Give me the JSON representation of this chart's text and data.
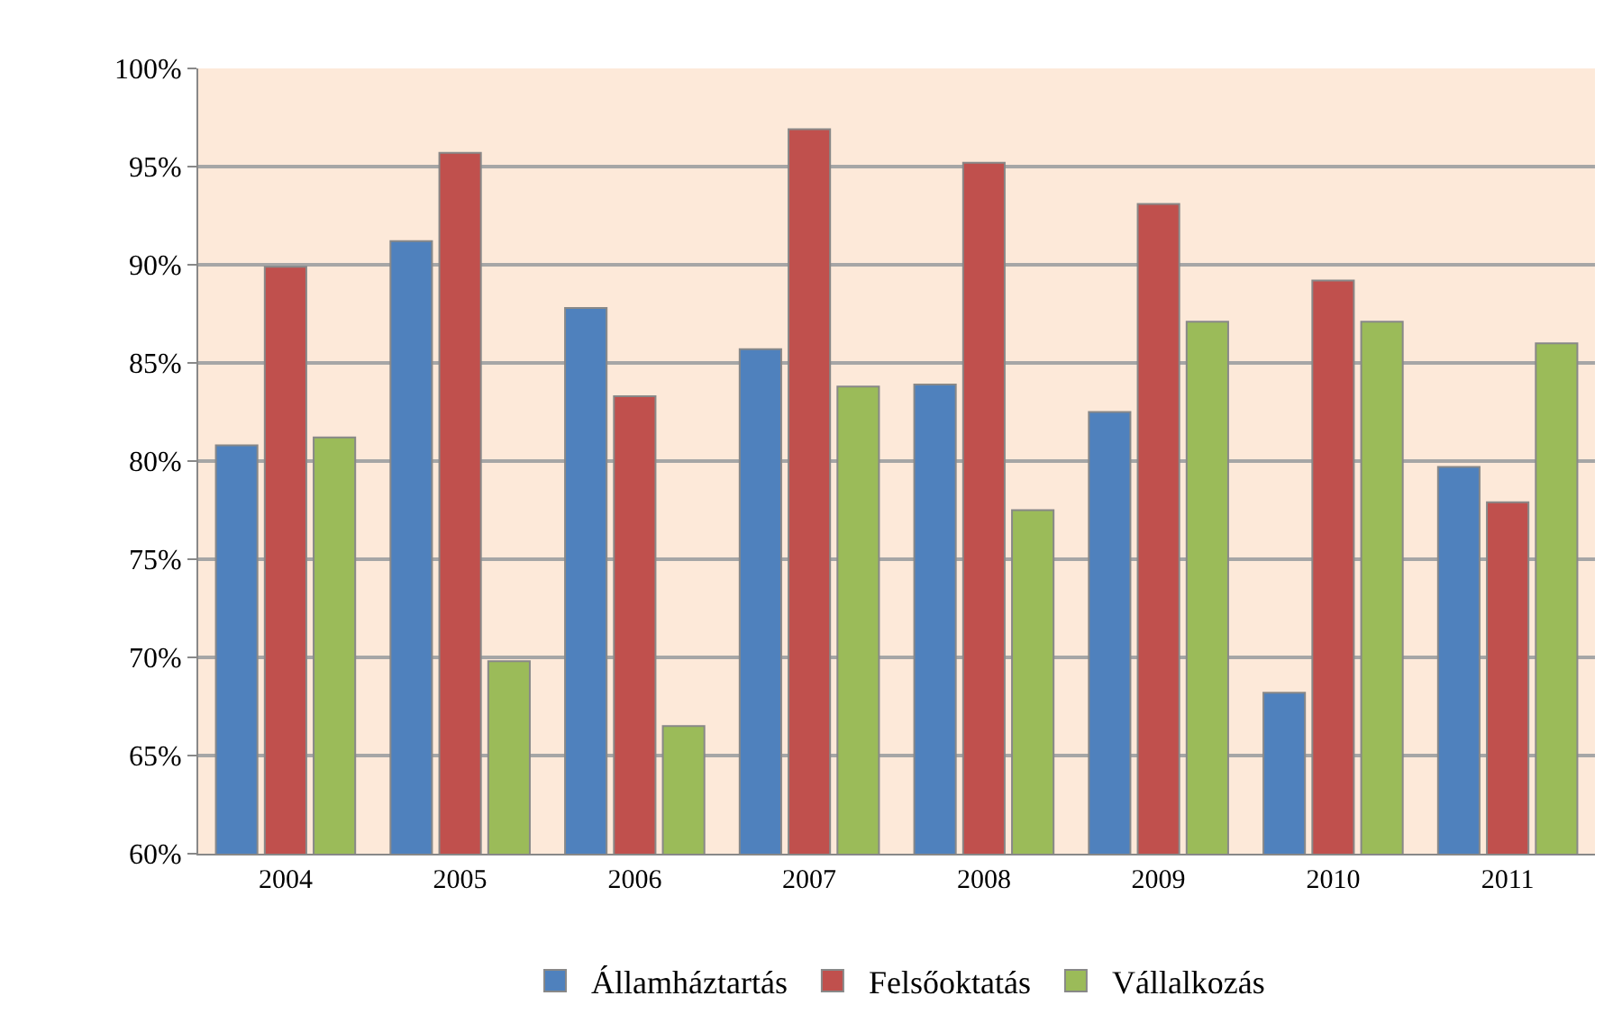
{
  "chart_data": {
    "type": "bar",
    "categories": [
      "2004",
      "2005",
      "2006",
      "2007",
      "2008",
      "2009",
      "2010",
      "2011"
    ],
    "series": [
      {
        "name": "Államháztartás",
        "color": "#4f81bd",
        "values": [
          80.8,
          91.2,
          87.8,
          85.7,
          83.9,
          82.5,
          68.2,
          79.7
        ]
      },
      {
        "name": "Felsőoktatás",
        "color": "#c0504d",
        "values": [
          89.9,
          95.7,
          83.3,
          96.9,
          95.2,
          93.1,
          89.2,
          77.9
        ]
      },
      {
        "name": "Vállalkozás",
        "color": "#9bbb59",
        "values": [
          81.2,
          69.8,
          66.5,
          83.8,
          77.5,
          87.1,
          87.1,
          86.0
        ]
      }
    ],
    "ylim": [
      60,
      100
    ],
    "yticks": [
      {
        "value": 60,
        "label": "60%"
      },
      {
        "value": 65,
        "label": "65%"
      },
      {
        "value": 70,
        "label": "70%"
      },
      {
        "value": 75,
        "label": "75%"
      },
      {
        "value": 80,
        "label": "80%"
      },
      {
        "value": 85,
        "label": "85%"
      },
      {
        "value": 90,
        "label": "90%"
      },
      {
        "value": 95,
        "label": "95%"
      },
      {
        "value": 100,
        "label": "100%"
      }
    ],
    "grid": "y",
    "legend": "bottom"
  }
}
